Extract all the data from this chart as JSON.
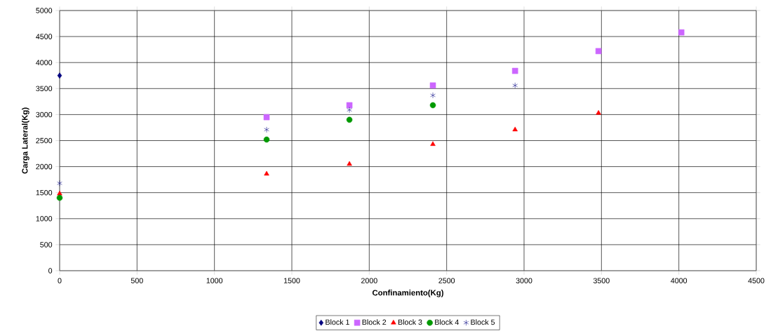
{
  "chart_data": {
    "type": "scatter",
    "xlabel": "Confinamiento(Kg)",
    "ylabel": "Carga Lateral(Kg)",
    "xlim": [
      0,
      4500
    ],
    "xticks": [
      0,
      500,
      1000,
      1500,
      2000,
      2500,
      3000,
      3500,
      4000,
      4500
    ],
    "ylim": [
      0,
      5000
    ],
    "yticks": [
      0,
      500,
      1000,
      1500,
      2000,
      2500,
      3000,
      3500,
      4000,
      4500,
      5000
    ],
    "grid": true,
    "legend": "bottom",
    "series": [
      {
        "name": "Block 1",
        "color": "#000080",
        "marker": "diamond",
        "x": [
          0
        ],
        "values": [
          3750
        ]
      },
      {
        "name": "Block 2",
        "color": "#cc66ff",
        "marker": "square",
        "x": [
          1337,
          1872,
          2411,
          2942,
          3481,
          4016
        ],
        "values": [
          2950,
          3180,
          3560,
          3840,
          4220,
          4580
        ]
      },
      {
        "name": "Block 3",
        "color": "#ff0000",
        "marker": "triangle",
        "x": [
          0,
          1337,
          1872,
          2411,
          2942,
          3481
        ],
        "values": [
          1480,
          1860,
          2050,
          2430,
          2710,
          3030
        ]
      },
      {
        "name": "Block 4",
        "color": "#009900",
        "marker": "circle",
        "x": [
          0,
          1337,
          1872,
          2411
        ],
        "values": [
          1400,
          2520,
          2900,
          3180
        ]
      },
      {
        "name": "Block 5",
        "color": "#000080",
        "marker": "cross",
        "x": [
          0,
          1337,
          1872,
          2411,
          2942
        ],
        "values": [
          1680,
          2710,
          3090,
          3370,
          3560
        ]
      }
    ]
  }
}
